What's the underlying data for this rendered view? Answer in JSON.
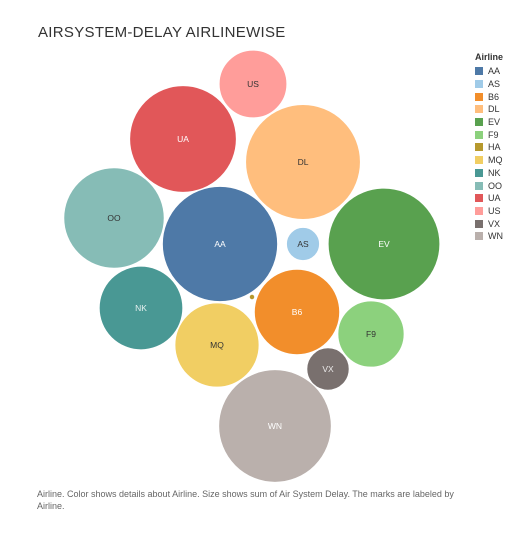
{
  "chart_data": {
    "type": "bubble",
    "title": "AIRSYSTEM-DELAY AIRLINEWISE",
    "legend": {
      "title": "Airline",
      "placement": "right"
    },
    "series": [
      {
        "label": "AA",
        "value": 13300,
        "color": "#4e79a7"
      },
      {
        "label": "AS",
        "value": 1100,
        "color": "#a0cbe8"
      },
      {
        "label": "B6",
        "value": 7300,
        "color": "#f28e2b"
      },
      {
        "label": "DL",
        "value": 13200,
        "color": "#ffbe7d"
      },
      {
        "label": "EV",
        "value": 12500,
        "color": "#59a14f"
      },
      {
        "label": "F9",
        "value": 4400,
        "color": "#8cd17d"
      },
      {
        "label": "HA",
        "value": 30,
        "color": "#b6992d"
      },
      {
        "label": "MQ",
        "value": 7100,
        "color": "#f1ce63"
      },
      {
        "label": "NK",
        "value": 7000,
        "color": "#499894"
      },
      {
        "label": "OO",
        "value": 10100,
        "color": "#86bcb6"
      },
      {
        "label": "UA",
        "value": 11400,
        "color": "#e15759"
      },
      {
        "label": "US",
        "value": 4600,
        "color": "#ff9d9a"
      },
      {
        "label": "VX",
        "value": 1800,
        "color": "#79706e"
      },
      {
        "label": "WN",
        "value": 12700,
        "color": "#bab0ac"
      }
    ],
    "caption": "Airline.  Color shows details about Airline.  Size shows sum of Air System Delay.  The marks are labeled by Airline."
  }
}
